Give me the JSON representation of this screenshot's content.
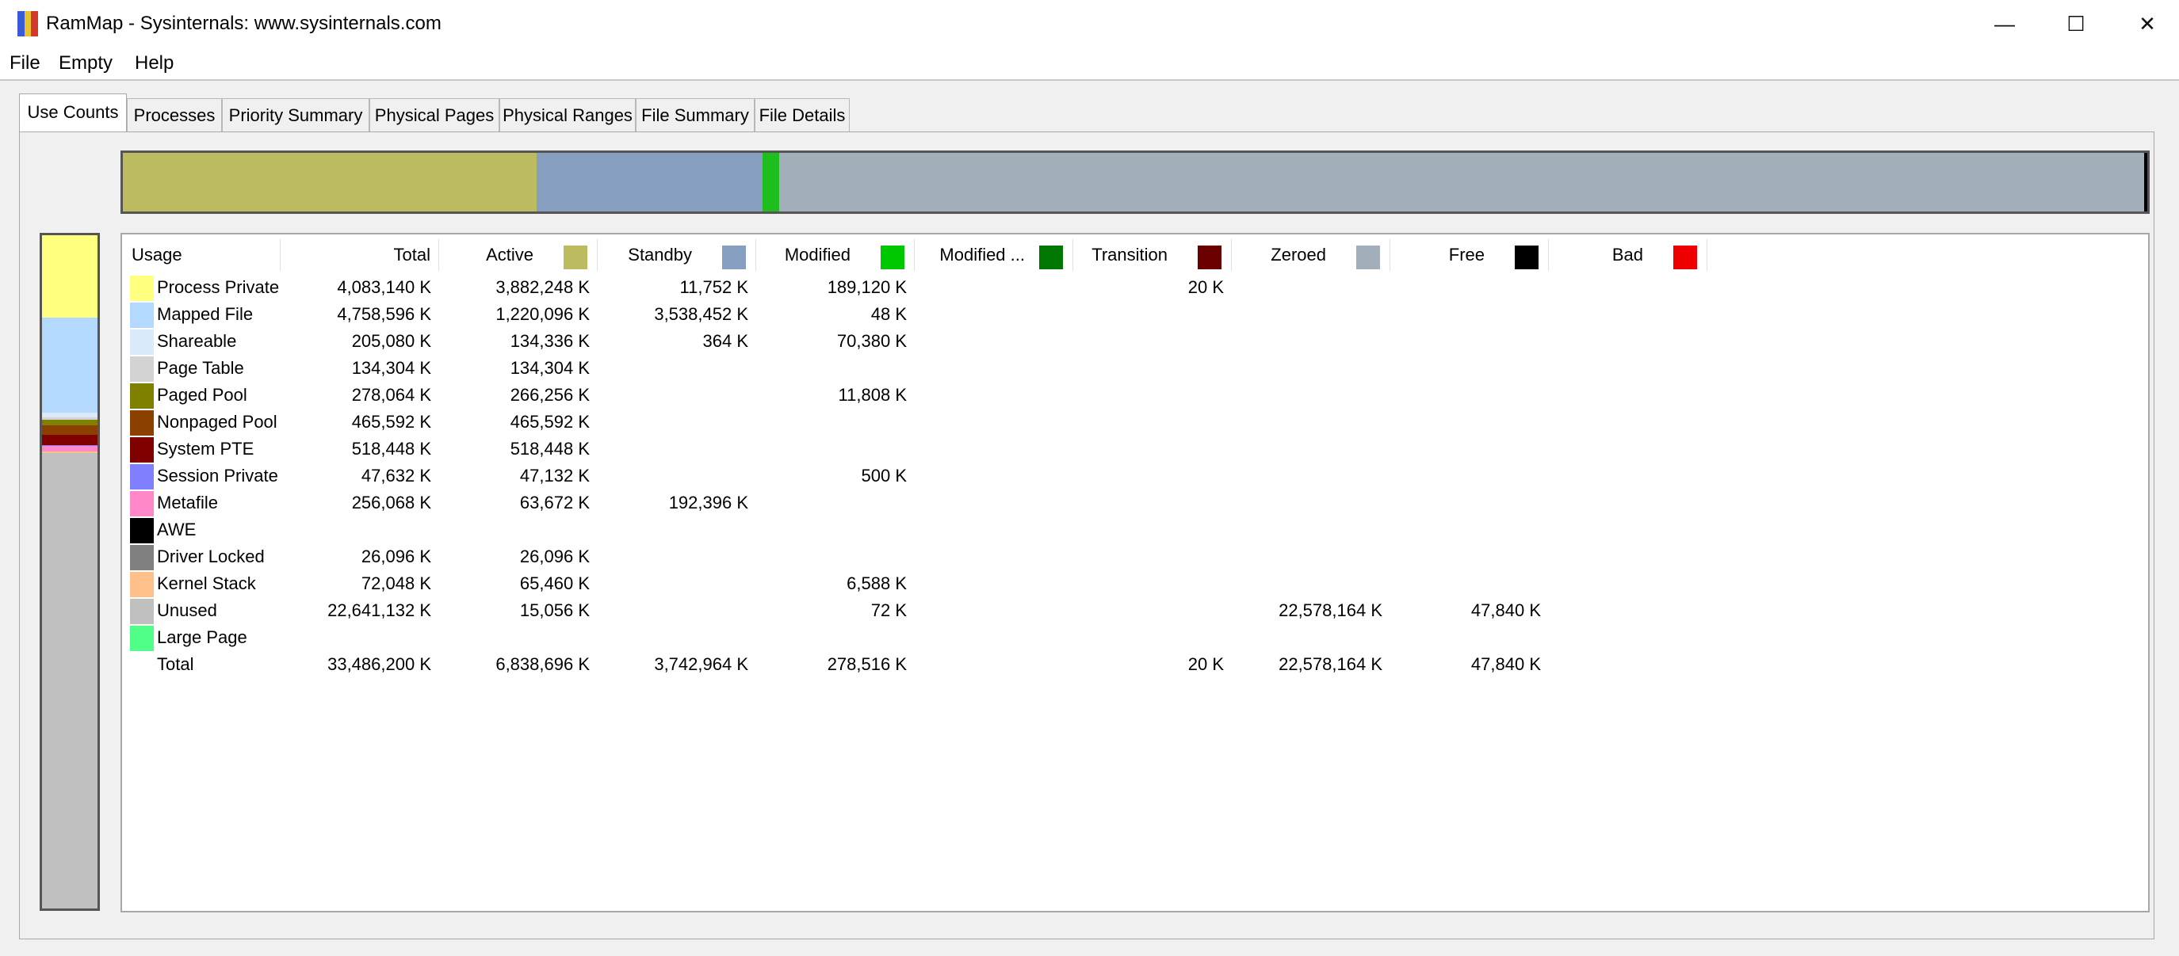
{
  "window": {
    "title": "RamMap - Sysinternals: www.sysinternals.com",
    "app_icon_colors": [
      "#3a5bd9",
      "#e8c22a",
      "#d4382c"
    ]
  },
  "controls": {
    "minimize": "—",
    "maximize": "☐",
    "close": "✕"
  },
  "menu": [
    "File",
    "Empty",
    "Help"
  ],
  "tabs": [
    "Use Counts",
    "Processes",
    "Priority Summary",
    "Physical Pages",
    "Physical Ranges",
    "File Summary",
    "File Details"
  ],
  "active_tab": "Use Counts",
  "usage_bar": [
    {
      "name": "Active",
      "fraction": 0.2042,
      "color": "#bdbb5f"
    },
    {
      "name": "Standby",
      "fraction": 0.1118,
      "color": "#869ebf"
    },
    {
      "name": "Modified",
      "fraction": 0.0083,
      "color": "#1ebe1e"
    },
    {
      "name": "Modified no write",
      "fraction": 0.0,
      "color": "#0b7a0b"
    },
    {
      "name": "Transition",
      "fraction": 0.0,
      "color": "#6b0000"
    },
    {
      "name": "Zeroed",
      "fraction": 0.6743,
      "color": "#a2aeb9"
    },
    {
      "name": "Free",
      "fraction": 0.0014,
      "color": "#000000"
    }
  ],
  "columns": [
    {
      "label": "Usage",
      "color": null
    },
    {
      "label": "Total",
      "color": null
    },
    {
      "label": "Active",
      "color": "#bdbb5f"
    },
    {
      "label": "Standby",
      "color": "#869ebf"
    },
    {
      "label": "Modified",
      "color": "#00c800"
    },
    {
      "label": "Modified ...",
      "color": "#007800"
    },
    {
      "label": "Transition",
      "color": "#6b0000"
    },
    {
      "label": "Zeroed",
      "color": "#a2aeb9"
    },
    {
      "label": "Free",
      "color": "#000000"
    },
    {
      "label": "Bad",
      "color": "#ee0000"
    }
  ],
  "rows": [
    {
      "name": "Process Private",
      "color": "#ffff80",
      "values": [
        "4,083,140 K",
        "3,882,248 K",
        "11,752 K",
        "189,120 K",
        "",
        "20 K",
        "",
        "",
        ""
      ]
    },
    {
      "name": "Mapped File",
      "color": "#b3d9ff",
      "values": [
        "4,758,596 K",
        "1,220,096 K",
        "3,538,452 K",
        "48 K",
        "",
        "",
        "",
        "",
        ""
      ]
    },
    {
      "name": "Shareable",
      "color": "#dbeafa",
      "values": [
        "205,080 K",
        "134,336 K",
        "364 K",
        "70,380 K",
        "",
        "",
        "",
        "",
        ""
      ]
    },
    {
      "name": "Page Table",
      "color": "#d3d3d3",
      "values": [
        "134,304 K",
        "134,304 K",
        "",
        "",
        "",
        "",
        "",
        "",
        ""
      ]
    },
    {
      "name": "Paged Pool",
      "color": "#808000",
      "values": [
        "278,064 K",
        "266,256 K",
        "",
        "11,808 K",
        "",
        "",
        "",
        "",
        ""
      ]
    },
    {
      "name": "Nonpaged Pool",
      "color": "#8b4000",
      "values": [
        "465,592 K",
        "465,592 K",
        "",
        "",
        "",
        "",
        "",
        "",
        ""
      ]
    },
    {
      "name": "System PTE",
      "color": "#800000",
      "values": [
        "518,448 K",
        "518,448 K",
        "",
        "",
        "",
        "",
        "",
        "",
        ""
      ]
    },
    {
      "name": "Session Private",
      "color": "#8080ff",
      "values": [
        "47,632 K",
        "47,132 K",
        "",
        "500 K",
        "",
        "",
        "",
        "",
        ""
      ]
    },
    {
      "name": "Metafile",
      "color": "#ff88c8",
      "values": [
        "256,068 K",
        "63,672 K",
        "192,396 K",
        "",
        "",
        "",
        "",
        "",
        ""
      ]
    },
    {
      "name": "AWE",
      "color": "#000000",
      "values": [
        "",
        "",
        "",
        "",
        "",
        "",
        "",
        "",
        ""
      ]
    },
    {
      "name": "Driver Locked",
      "color": "#808080",
      "values": [
        "26,096 K",
        "26,096 K",
        "",
        "",
        "",
        "",
        "",
        "",
        ""
      ]
    },
    {
      "name": "Kernel Stack",
      "color": "#ffc08a",
      "values": [
        "72,048 K",
        "65,460 K",
        "",
        "6,588 K",
        "",
        "",
        "",
        "",
        ""
      ]
    },
    {
      "name": "Unused",
      "color": "#c0c0c0",
      "values": [
        "22,641,132 K",
        "15,056 K",
        "",
        "72 K",
        "",
        "",
        "22,578,164 K",
        "47,840 K",
        ""
      ]
    },
    {
      "name": "Large Page",
      "color": "#50ff88",
      "values": [
        "",
        "",
        "",
        "",
        "",
        "",
        "",
        "",
        ""
      ]
    },
    {
      "name": "Total",
      "color": null,
      "values": [
        "33,486,200 K",
        "6,838,696 K",
        "3,742,964 K",
        "278,516 K",
        "",
        "20 K",
        "22,578,164 K",
        "47,840 K",
        ""
      ]
    }
  ],
  "vertical_bar": [
    {
      "name": "Process Private",
      "fraction": 0.1219,
      "color": "#ffff80"
    },
    {
      "name": "Mapped File",
      "fraction": 0.1421,
      "color": "#b3d9ff"
    },
    {
      "name": "Shareable",
      "fraction": 0.0061,
      "color": "#dbeafa"
    },
    {
      "name": "Page Table",
      "fraction": 0.004,
      "color": "#d3d3d3"
    },
    {
      "name": "Paged Pool",
      "fraction": 0.0083,
      "color": "#808000"
    },
    {
      "name": "Nonpaged Pool",
      "fraction": 0.0139,
      "color": "#8b4000"
    },
    {
      "name": "System PTE",
      "fraction": 0.0155,
      "color": "#800000"
    },
    {
      "name": "Session Private",
      "fraction": 0.0014,
      "color": "#8080ff"
    },
    {
      "name": "Metafile",
      "fraction": 0.0076,
      "color": "#ff88c8"
    },
    {
      "name": "Driver Locked",
      "fraction": 0.0008,
      "color": "#808080"
    },
    {
      "name": "Kernel Stack",
      "fraction": 0.0022,
      "color": "#ffc08a"
    },
    {
      "name": "Unused",
      "fraction": 0.6761,
      "color": "#c0c0c0"
    }
  ]
}
